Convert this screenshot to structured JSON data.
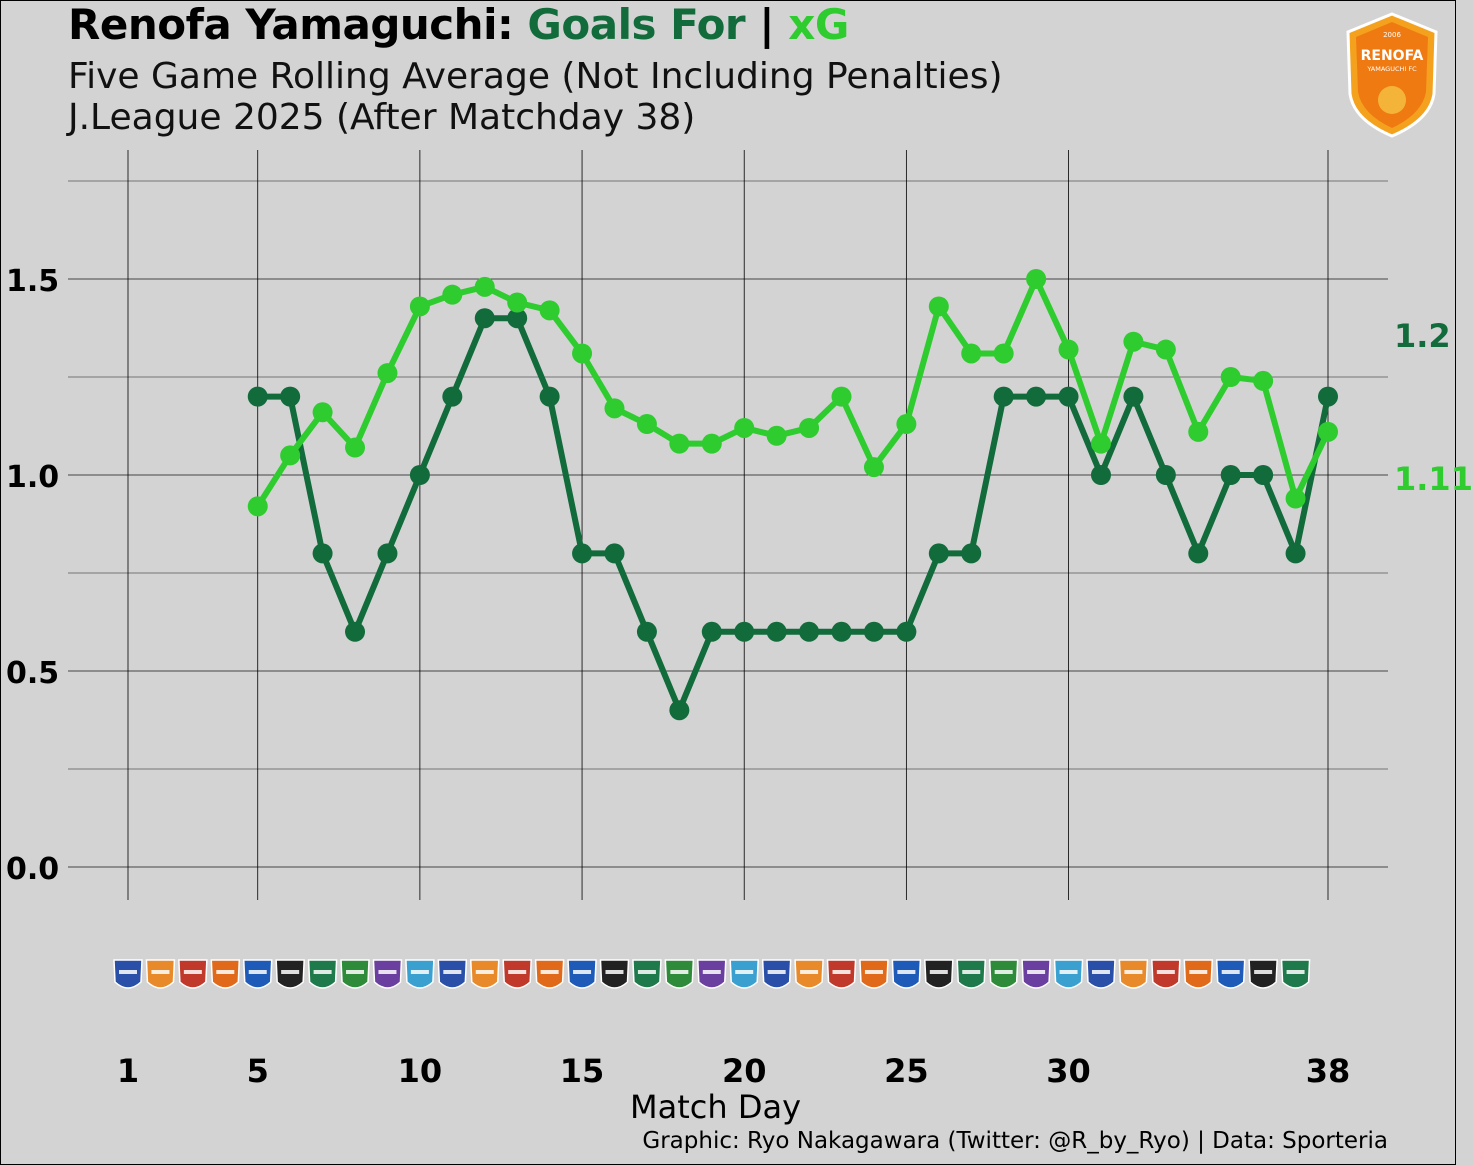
{
  "header": {
    "title_team": "Renofa Yamaguchi:",
    "title_goals": "Goals For",
    "title_sep": "|",
    "title_xg": "xG",
    "subtitle1": "Five Game Rolling Average (Not Including Penalties)",
    "subtitle2": "J.League 2025 (After Matchday 38)"
  },
  "badge": {
    "icon": "renofa-yamaguchi-crest-icon",
    "year": "2006",
    "name": "RENOFA",
    "name2": "YAMAGUCHI FC"
  },
  "caption": "Graphic: Ryo Nakagawara (Twitter: @R_by_Ryo) | Data: Sporteria",
  "colors": {
    "goals": "#116b3a",
    "xg": "#2ecc2e",
    "background": "#d3d3d3"
  },
  "chart_data": {
    "type": "line",
    "title": "Renofa Yamaguchi: Goals For | xG",
    "subtitle": "Five Game Rolling Average (Not Including Penalties)",
    "xlabel": "Match Day",
    "ylabel": "",
    "xlim": [
      0.5,
      39.8
    ],
    "ylim": [
      -0.08,
      1.75
    ],
    "xticks": [
      1,
      5,
      10,
      15,
      20,
      25,
      30,
      38
    ],
    "yticks": [
      0.0,
      0.5,
      1.0,
      1.5
    ],
    "ytick_labels": [
      "0.0",
      "0.5",
      "1.0",
      "1.5"
    ],
    "grid": true,
    "series": [
      {
        "name": "Goals For",
        "color": "#116b3a",
        "end_label": "1.2",
        "x": [
          5,
          6,
          7,
          8,
          9,
          10,
          11,
          12,
          13,
          14,
          15,
          16,
          17,
          18,
          19,
          20,
          21,
          22,
          23,
          24,
          25,
          26,
          27,
          28,
          29,
          30,
          31,
          32,
          33,
          34,
          35,
          36,
          37,
          38
        ],
        "values": [
          1.2,
          1.2,
          0.8,
          0.6,
          0.8,
          1.0,
          1.2,
          1.4,
          1.4,
          1.2,
          0.8,
          0.8,
          0.6,
          0.4,
          0.6,
          0.6,
          0.6,
          0.6,
          0.6,
          0.6,
          0.6,
          0.8,
          0.8,
          1.2,
          1.2,
          1.2,
          1.0,
          1.2,
          1.0,
          0.8,
          1.0,
          1.0,
          0.8,
          1.2
        ]
      },
      {
        "name": "xG",
        "color": "#2ecc2e",
        "end_label": "1.11",
        "x": [
          5,
          6,
          7,
          8,
          9,
          10,
          11,
          12,
          13,
          14,
          15,
          16,
          17,
          18,
          19,
          20,
          21,
          22,
          23,
          24,
          25,
          26,
          27,
          28,
          29,
          30,
          31,
          32,
          33,
          34,
          35,
          36,
          37,
          38
        ],
        "values": [
          0.92,
          1.05,
          1.16,
          1.07,
          1.26,
          1.43,
          1.46,
          1.48,
          1.44,
          1.42,
          1.31,
          1.17,
          1.13,
          1.08,
          1.08,
          1.12,
          1.1,
          1.12,
          1.2,
          1.02,
          1.13,
          1.43,
          1.31,
          1.31,
          1.5,
          1.32,
          1.08,
          1.34,
          1.32,
          1.11,
          1.25,
          1.24,
          0.94,
          1.11
        ]
      }
    ],
    "opponent_logos": [
      "yokohama-fc",
      "ehime-fc",
      "consadole-sapporo",
      "omiya-ardija",
      "fujieda-myfc",
      "iwaki-fc",
      "blaublitz-akita",
      "fc-imabari",
      "roasso-kumamoto",
      "sagan-tosu",
      "vegalta-sendai",
      "ventforet-kofu",
      "tokushima-vortis",
      "montedio-yamagata",
      "mito-hollyhock",
      "fc-gifu",
      "jef-united",
      "oita-trinita",
      "fc-imabari",
      "blaublitz-akita",
      "consadole-sapporo",
      "roasso-kumamoto",
      "kataller-toyama",
      "yokohama-fc",
      "ventforet-kofu",
      "ehime-fc",
      "montedio-yamagata",
      "jef-united",
      "fujieda-myfc",
      "mito-hollyhock",
      "sagan-tosu",
      "vegalta-sendai",
      "roasso-kumamoto",
      "iwaki-fc",
      "ventforet-kofu",
      "oita-trinita",
      "omiya-ardija"
    ]
  }
}
